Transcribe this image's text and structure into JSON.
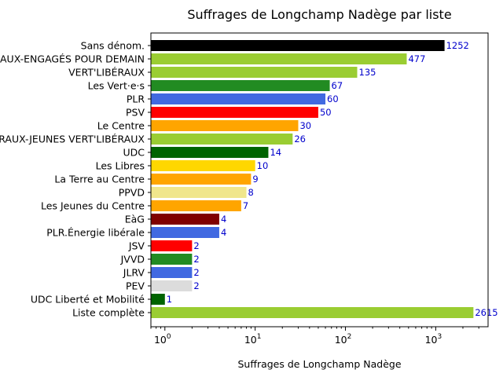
{
  "chart_data": {
    "type": "bar",
    "orientation": "horizontal",
    "title": "Suffrages de Longchamp Nadège par liste",
    "xlabel": "Suffrages de Longchamp Nadège",
    "ylabel": "",
    "xscale": "log",
    "xlim": [
      0.7,
      3800
    ],
    "xticks": [
      {
        "value": 1,
        "label": "10",
        "exp": "0"
      },
      {
        "value": 10,
        "label": "10",
        "exp": "1"
      },
      {
        "value": 100,
        "label": "10",
        "exp": "2"
      },
      {
        "value": 1000,
        "label": "10",
        "exp": "3"
      }
    ],
    "grid": false,
    "legend": "none",
    "bars": [
      {
        "category": "Sans dénom.",
        "value": 1252,
        "label": "1252",
        "color": "#000000"
      },
      {
        "category": "VERT'LIBÉRAUX-ENGAGÉS POUR DEMAIN",
        "value": 477,
        "label": "477",
        "color": "#9acd32"
      },
      {
        "category": "VERT'LIBÉRAUX",
        "value": 135,
        "label": "135",
        "color": "#9acd32"
      },
      {
        "category": "Les Vert·e·s",
        "value": 67,
        "label": "67",
        "color": "#228b22"
      },
      {
        "category": "PLR",
        "value": 60,
        "label": "60",
        "color": "#4169e1"
      },
      {
        "category": "PSV",
        "value": 50,
        "label": "50",
        "color": "#ff0000"
      },
      {
        "category": "Le Centre",
        "value": 30,
        "label": "30",
        "color": "#ffa500"
      },
      {
        "category": "VERT'LIBÉRAUX-JEUNES VERT'LIBÉRAUX",
        "value": 26,
        "label": "26",
        "color": "#9acd32"
      },
      {
        "category": "UDC",
        "value": 14,
        "label": "14",
        "color": "#006400"
      },
      {
        "category": "Les Libres",
        "value": 10,
        "label": "10",
        "color": "#ffd700"
      },
      {
        "category": "La Terre au Centre",
        "value": 9,
        "label": "9",
        "color": "#ffa500"
      },
      {
        "category": "PPVD",
        "value": 8,
        "label": "8",
        "color": "#f0e68c"
      },
      {
        "category": "Les Jeunes du Centre",
        "value": 7,
        "label": "7",
        "color": "#ffa500"
      },
      {
        "category": "EàG",
        "value": 4,
        "label": "4",
        "color": "#800000"
      },
      {
        "category": "PLR.Énergie libérale",
        "value": 4,
        "label": "4",
        "color": "#4169e1"
      },
      {
        "category": "JSV",
        "value": 2,
        "label": "2",
        "color": "#ff0000"
      },
      {
        "category": "JVVD",
        "value": 2,
        "label": "2",
        "color": "#228b22"
      },
      {
        "category": "JLRV",
        "value": 2,
        "label": "2",
        "color": "#4169e1"
      },
      {
        "category": "PEV",
        "value": 2,
        "label": "2",
        "color": "#dcdcdc"
      },
      {
        "category": "UDC Liberté et Mobilité",
        "value": 1,
        "label": "1",
        "color": "#006400"
      },
      {
        "category": "Liste complète",
        "value": 2615,
        "label": "2615",
        "color": "#9acd32"
      }
    ]
  }
}
